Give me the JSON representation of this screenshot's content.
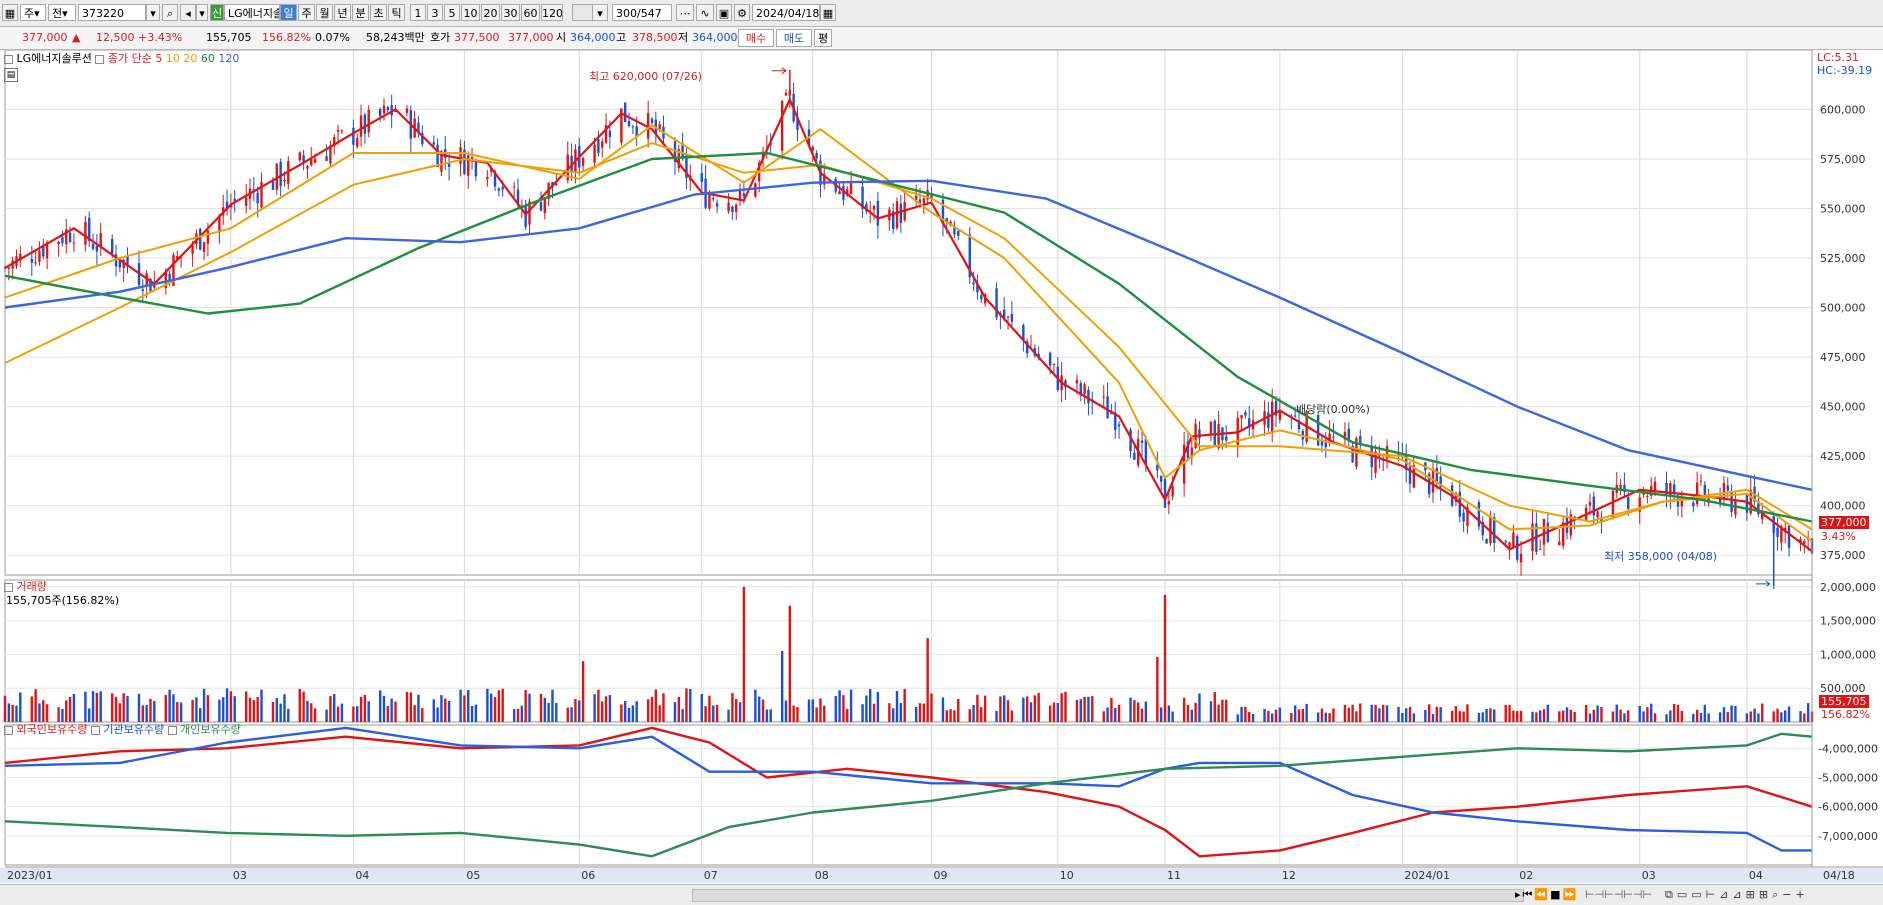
{
  "toolbar": {
    "period_select": "주",
    "market_select": "전",
    "code": "373220",
    "stock_name": "LG에너지솔",
    "badge": "신",
    "period_tabs": [
      "일",
      "주",
      "월",
      "년",
      "분",
      "초",
      "틱"
    ],
    "active_tab": 0,
    "minute_tabs": [
      "1",
      "3",
      "5",
      "10",
      "20",
      "30",
      "60",
      "120"
    ],
    "count": "300",
    "count_total": "/547",
    "date": "2024/04/18"
  },
  "quote": {
    "price": "377,000",
    "change_arrow": "▲",
    "change": "12,500",
    "change_pct": "+3.43%",
    "volume": "155,705",
    "volume_ratio": "156.82%",
    "turnover_rate": "0.07%",
    "amount": "58,243백만",
    "ask_label": "호가",
    "ask": "377,500",
    "bid": "377,000",
    "open_label": "시",
    "open": "364,000",
    "high_label": "고",
    "high": "378,500",
    "low_label": "저",
    "low": "364,000",
    "buy_button": "매수",
    "sell_button": "매도",
    "eval_button": "평"
  },
  "price_panel": {
    "title": "LG에너지솔루션",
    "ma_label": "종가 단순",
    "ma_periods": [
      "5",
      "10",
      "20",
      "60",
      "120"
    ],
    "lc": "LC:5.31",
    "hc": "HC:-39.19",
    "high_annotation": "최고 620,000 (07/26)",
    "low_annotation": "최저 358,000 (04/08)",
    "dividend_annotation": "배당락(0.00%)",
    "last_price_tag": "377,000",
    "last_pct_tag": "3.43%"
  },
  "volume_panel": {
    "title": "거래량",
    "value_text": "155,705주(156.82%)",
    "last_tag": "155,705",
    "last_pct_tag": "156.82%"
  },
  "holdings_panel": {
    "legend": [
      "외국인보유수량",
      "기관보유수량",
      "개인보유수량"
    ]
  },
  "x_labels": [
    "2023/01",
    "03",
    "04",
    "05",
    "06",
    "07",
    "08",
    "09",
    "10",
    "11",
    "12",
    "2024/01",
    "02",
    "03",
    "04",
    "04/18"
  ],
  "colors": {
    "up": "#e01414",
    "down": "#1a4fd6",
    "ma5": "#e01414",
    "ma10": "#f0a000",
    "ma20": "#f0a000",
    "ma60": "#1e8f3c",
    "ma120": "#3a66e0",
    "foreign": "#e01414",
    "institution": "#2a5ee0",
    "individual": "#2e8a5a",
    "highlight": "#3d7fd6"
  },
  "chart_data": [
    {
      "type": "line",
      "title": "LG에너지솔루션",
      "ylim": [
        365000,
        630000
      ],
      "y_ticks": [
        375000,
        400000,
        425000,
        450000,
        475000,
        500000,
        525000,
        550000,
        575000,
        600000
      ],
      "y_tick_labels": [
        "375,000",
        "400,000",
        "425,000",
        "450,000",
        "475,000",
        "500,000",
        "525,000",
        "550,000",
        "575,000",
        "600,000"
      ],
      "x_range": [
        "2023/01/02",
        "2024/04/18"
      ],
      "series": [
        {
          "name": "종가 단순 5",
          "x": [
            "2023/01/02",
            "2023/01/20",
            "2023/02/10",
            "2023/03/02",
            "2023/03/20",
            "2023/04/03",
            "2023/04/14",
            "2023/04/26",
            "2023/05/08",
            "2023/05/18",
            "2023/06/01",
            "2023/06/12",
            "2023/06/20",
            "2023/07/03",
            "2023/07/14",
            "2023/07/26",
            "2023/08/03",
            "2023/08/18",
            "2023/09/01",
            "2023/09/15",
            "2023/10/05",
            "2023/10/20",
            "2023/11/01",
            "2023/11/08",
            "2023/11/20",
            "2023/12/01",
            "2023/12/15",
            "2024/01/02",
            "2024/01/15",
            "2024/01/30",
            "2024/02/15",
            "2024/03/04",
            "2024/03/20",
            "2024/04/01",
            "2024/04/18"
          ],
          "values": [
            520000,
            540000,
            512000,
            552000,
            572000,
            588000,
            600000,
            577000,
            573000,
            547000,
            576000,
            598000,
            590000,
            558000,
            554000,
            605000,
            568000,
            545000,
            553000,
            505000,
            462000,
            445000,
            403000,
            435000,
            437000,
            448000,
            432000,
            420000,
            405000,
            378000,
            392000,
            408000,
            405000,
            402000,
            377000
          ]
        },
        {
          "name": "종가 단순 10",
          "x": [
            "2023/01/02",
            "2023/02/01",
            "2023/03/02",
            "2023/04/03",
            "2023/05/02",
            "2023/06/01",
            "2023/06/20",
            "2023/07/14",
            "2023/08/03",
            "2023/09/01",
            "2023/09/20",
            "2023/10/20",
            "2023/11/01",
            "2023/11/10",
            "2023/12/01",
            "2024/01/02",
            "2024/01/30",
            "2024/02/20",
            "2024/03/10",
            "2024/04/01",
            "2024/04/18"
          ],
          "values": [
            505000,
            525000,
            540000,
            578000,
            578000,
            565000,
            592000,
            563000,
            590000,
            548000,
            525000,
            462000,
            414000,
            428000,
            438000,
            423000,
            388000,
            390000,
            402000,
            406000,
            382000
          ]
        },
        {
          "name": "종가 단순 20",
          "x": [
            "2023/01/02",
            "2023/02/01",
            "2023/03/02",
            "2023/04/03",
            "2023/05/02",
            "2023/06/01",
            "2023/06/20",
            "2023/07/14",
            "2023/08/03",
            "2023/09/01",
            "2023/09/20",
            "2023/10/20",
            "2023/11/10",
            "2023/12/01",
            "2024/01/02",
            "2024/01/30",
            "2024/02/20",
            "2024/03/10",
            "2024/04/01",
            "2024/04/18"
          ],
          "values": [
            472000,
            500000,
            528000,
            562000,
            575000,
            568000,
            583000,
            568000,
            572000,
            555000,
            535000,
            480000,
            430000,
            430000,
            425000,
            400000,
            392000,
            402000,
            408000,
            388000
          ]
        },
        {
          "name": "종가 단순 60",
          "x": [
            "2023/01/02",
            "2023/02/01",
            "2023/02/24",
            "2023/03/20",
            "2023/04/20",
            "2023/05/20",
            "2023/06/20",
            "2023/07/20",
            "2023/08/20",
            "2023/09/20",
            "2023/10/20",
            "2023/11/20",
            "2023/12/20",
            "2024/01/20",
            "2024/02/20",
            "2024/03/20",
            "2024/04/18"
          ],
          "values": [
            516000,
            505000,
            497000,
            502000,
            530000,
            553000,
            575000,
            578000,
            563000,
            548000,
            512000,
            465000,
            432000,
            418000,
            410000,
            403000,
            392000
          ]
        },
        {
          "name": "종가 단순 120",
          "x": [
            "2023/01/02",
            "2023/02/01",
            "2023/03/01",
            "2023/04/01",
            "2023/05/01",
            "2023/06/01",
            "2023/07/01",
            "2023/08/01",
            "2023/09/01",
            "2023/10/01",
            "2023/11/01",
            "2023/12/01",
            "2024/01/01",
            "2024/02/01",
            "2024/03/01",
            "2024/04/01",
            "2024/04/18"
          ],
          "values": [
            500000,
            508000,
            520000,
            535000,
            533000,
            540000,
            557000,
            563000,
            564000,
            555000,
            530000,
            505000,
            478000,
            450000,
            428000,
            415000,
            408000
          ]
        }
      ],
      "high": {
        "date": "2023/07/26",
        "value": 620000
      },
      "low": {
        "date": "2024/04/08",
        "value": 358000
      }
    },
    {
      "type": "bar",
      "title": "거래량",
      "ylim": [
        0,
        2100000
      ],
      "y_ticks": [
        500000,
        1000000,
        1500000,
        2000000
      ],
      "y_tick_labels": [
        "500,000",
        "1,000,000",
        "1,500,000",
        "2,000,000"
      ],
      "spikes": [
        {
          "date": "2023/07/14",
          "value": 2000000
        },
        {
          "date": "2023/07/26",
          "value": 1720000
        },
        {
          "date": "2023/07/24",
          "value": 1050000
        },
        {
          "date": "2023/08/31",
          "value": 1240000
        },
        {
          "date": "2023/11/01",
          "value": 1880000
        },
        {
          "date": "2023/10/30",
          "value": 960000
        },
        {
          "date": "2023/06/02",
          "value": 900000
        }
      ],
      "last": {
        "date": "2024/04/18",
        "value": 155705
      }
    },
    {
      "type": "line",
      "title": "외국인보유수량 / 기관보유수량 / 개인보유수량",
      "ylim": [
        -8000000,
        -3200000
      ],
      "y_ticks": [
        -4000000,
        -5000000,
        -6000000,
        -7000000
      ],
      "y_tick_labels": [
        "-4,000,000",
        "-5,000,000",
        "-6,000,000",
        "-7,000,000"
      ],
      "series": [
        {
          "name": "외국인보유수량",
          "x": [
            "2023/01/02",
            "2023/02/01",
            "2023/03/01",
            "2023/04/01",
            "2023/05/01",
            "2023/06/01",
            "2023/06/20",
            "2023/07/05",
            "2023/07/20",
            "2023/08/10",
            "2023/09/01",
            "2023/10/01",
            "2023/10/20",
            "2023/11/01",
            "2023/11/10",
            "2023/12/01",
            "2023/12/20",
            "2024/01/10",
            "2024/02/01",
            "2024/03/01",
            "2024/04/01",
            "2024/04/18"
          ],
          "values": [
            -4500000,
            -4100000,
            -4000000,
            -3600000,
            -4000000,
            -3900000,
            -3300000,
            -3800000,
            -5000000,
            -4700000,
            -5000000,
            -5500000,
            -6000000,
            -6800000,
            -7700000,
            -7500000,
            -6900000,
            -6200000,
            -6000000,
            -5600000,
            -5300000,
            -6000000
          ]
        },
        {
          "name": "기관보유수량",
          "x": [
            "2023/01/02",
            "2023/02/01",
            "2023/03/01",
            "2023/04/01",
            "2023/05/01",
            "2023/06/01",
            "2023/06/20",
            "2023/07/05",
            "2023/08/01",
            "2023/09/01",
            "2023/10/01",
            "2023/10/20",
            "2023/11/01",
            "2023/11/10",
            "2023/12/01",
            "2023/12/20",
            "2024/01/10",
            "2024/02/01",
            "2024/03/01",
            "2024/04/01",
            "2024/04/10",
            "2024/04/18"
          ],
          "values": [
            -4600000,
            -4500000,
            -3800000,
            -3300000,
            -3900000,
            -4000000,
            -3600000,
            -4800000,
            -4800000,
            -5200000,
            -5200000,
            -5300000,
            -4700000,
            -4500000,
            -4500000,
            -5600000,
            -6200000,
            -6500000,
            -6800000,
            -6900000,
            -7500000,
            -7500000
          ]
        },
        {
          "name": "개인보유수량",
          "x": [
            "2023/01/02",
            "2023/02/01",
            "2023/03/01",
            "2023/04/01",
            "2023/05/01",
            "2023/06/01",
            "2023/06/20",
            "2023/07/10",
            "2023/08/01",
            "2023/09/01",
            "2023/10/01",
            "2023/11/01",
            "2023/12/01",
            "2024/01/01",
            "2024/02/01",
            "2024/03/01",
            "2024/04/01",
            "2024/04/10",
            "2024/04/18"
          ],
          "values": [
            -6500000,
            -6700000,
            -6900000,
            -7000000,
            -6900000,
            -7300000,
            -7700000,
            -6700000,
            -6200000,
            -5800000,
            -5200000,
            -4700000,
            -4600000,
            -4300000,
            -4000000,
            -4100000,
            -3900000,
            -3500000,
            -3600000
          ]
        }
      ]
    }
  ]
}
